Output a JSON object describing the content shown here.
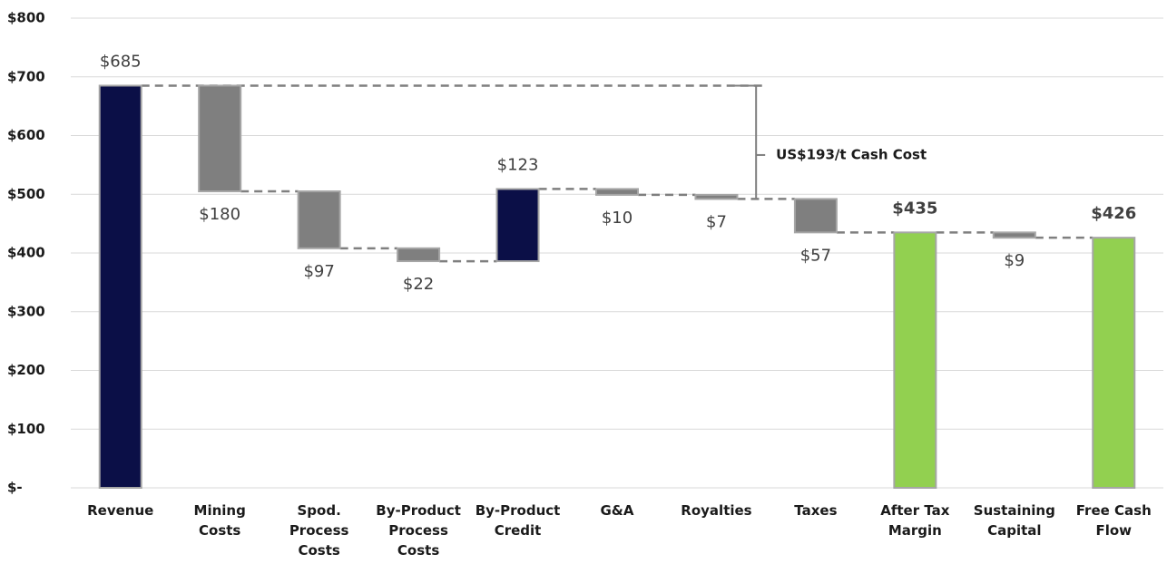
{
  "chart_data": {
    "type": "waterfall",
    "categories": [
      "Revenue",
      "Mining Costs",
      "Spod. Process Costs",
      "By-Product Process Costs",
      "By-Product Credit",
      "G&A",
      "Royalties",
      "Taxes",
      "After Tax Margin",
      "Sustaining Capital",
      "Free Cash Flow"
    ],
    "values": [
      685,
      180,
      97,
      22,
      123,
      10,
      7,
      57,
      435,
      9,
      426
    ],
    "value_labels": [
      "$685",
      "$180",
      "$97",
      "$22",
      "$123",
      "$10",
      "$7",
      "$57",
      "$435",
      "$9",
      "$426"
    ],
    "measure": [
      "total",
      "decrease",
      "decrease",
      "decrease",
      "increase",
      "decrease",
      "decrease",
      "decrease",
      "total",
      "decrease",
      "total"
    ],
    "colors": [
      "#0b0f47",
      "#7f7f7f",
      "#7f7f7f",
      "#7f7f7f",
      "#0b0f47",
      "#7f7f7f",
      "#7f7f7f",
      "#7f7f7f",
      "#92d050",
      "#7f7f7f",
      "#92d050"
    ],
    "ylim": [
      0,
      800
    ],
    "yticks": [
      {
        "value": 0,
        "label": "$-"
      },
      {
        "value": 100,
        "label": "$100"
      },
      {
        "value": 200,
        "label": "$200"
      },
      {
        "value": 300,
        "label": "$300"
      },
      {
        "value": 400,
        "label": "$400"
      },
      {
        "value": 500,
        "label": "$500"
      },
      {
        "value": 600,
        "label": "$600"
      },
      {
        "value": 700,
        "label": "$700"
      },
      {
        "value": 800,
        "label": "$800"
      }
    ],
    "grid": true,
    "annotation": "US$193/t Cash Cost"
  }
}
